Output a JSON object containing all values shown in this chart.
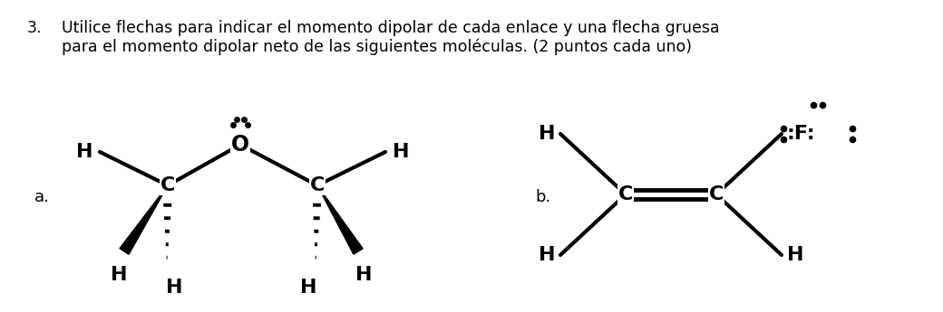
{
  "bg_color": "#ffffff",
  "text_color": "#000000",
  "label_a": "a.",
  "label_b": "b.",
  "title_line1": "Utilice flechas para indicar el momento dipolar de cada enlace y una flecha gruesa",
  "title_line2": "para el momento dipolar neto de las siguientes moléculas. (2 puntos cada uno)",
  "title_num": "3.",
  "font_size_title": 12.5,
  "font_size_atom": 16,
  "font_size_label": 13
}
